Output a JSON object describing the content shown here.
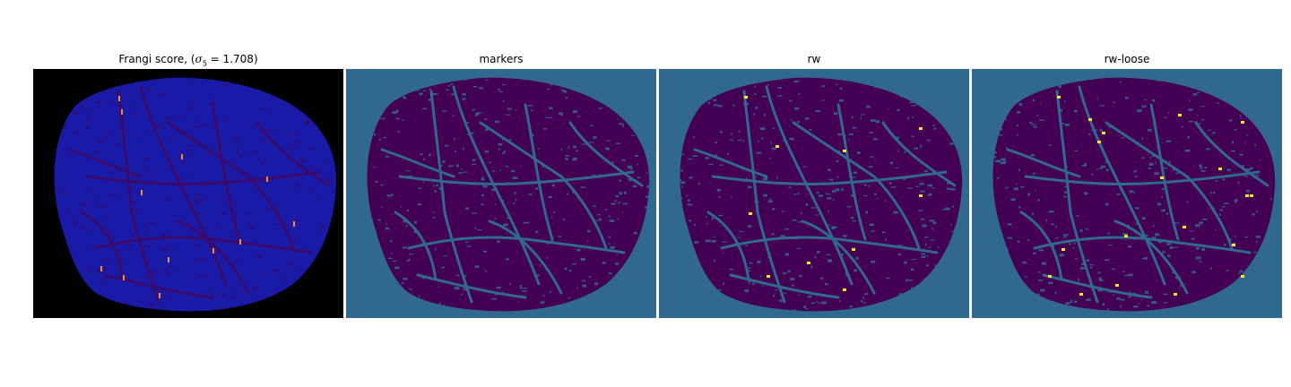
{
  "panels": [
    {
      "id": "frangi",
      "title_prefix": "Frangi score, (",
      "title_math_symbol": "σ",
      "title_math_subscript": "5",
      "title_math_rest": " = 1.708)",
      "background": "#000000",
      "tissue_color": "#1a1aa8",
      "vessel_color": "#3b0a6b",
      "highlight_color": "#ff8c2a"
    },
    {
      "id": "markers",
      "title": "markers",
      "background": "#31688e",
      "tissue_color": "#440154",
      "vessel_color": "#31688e"
    },
    {
      "id": "rw",
      "title": "rw",
      "background": "#31688e",
      "tissue_color": "#440154",
      "vessel_color": "#31688e",
      "highlight_color": "#fde725"
    },
    {
      "id": "rw-loose",
      "title": "rw-loose",
      "background": "#31688e",
      "tissue_color": "#440154",
      "vessel_color": "#31688e",
      "highlight_color": "#fde725"
    }
  ]
}
